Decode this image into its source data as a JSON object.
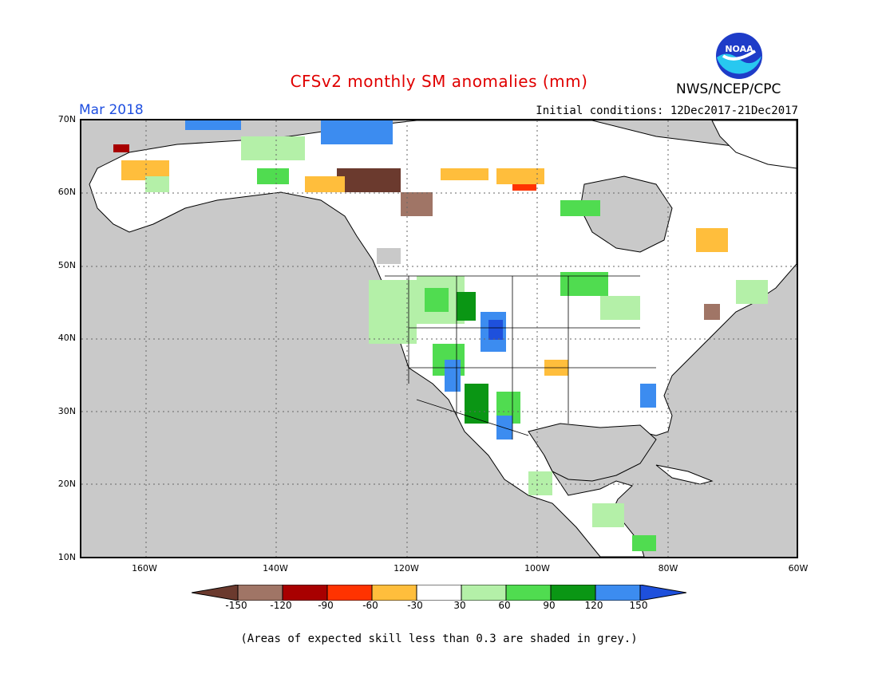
{
  "header": {
    "title": "CFSv2 monthly SM anomalies (mm)",
    "month": "Mar 2018",
    "initial_conditions": "Initial conditions: 12Dec2017-21Dec2017",
    "agency": "NWS/NCEP/CPC",
    "logo_text": "NOAA"
  },
  "map": {
    "lat_labels": [
      "70N",
      "60N",
      "50N",
      "40N",
      "30N",
      "20N",
      "10N"
    ],
    "lon_labels": [
      "160W",
      "140W",
      "120W",
      "100W",
      "80W",
      "60W"
    ],
    "extent": {
      "lon_min": -170,
      "lon_max": -60,
      "lat_min": 10,
      "lat_max": 70
    },
    "background_color": "#c9c9c9"
  },
  "legend": {
    "tick_labels": [
      "-150",
      "-120",
      "-90",
      "-60",
      "-30",
      "30",
      "60",
      "90",
      "120",
      "150"
    ],
    "colors": [
      "#6b3a2e",
      "#a07566",
      "#a80000",
      "#ff3300",
      "#ffbe3c",
      "#ffffff",
      "#b4f0a8",
      "#50dc50",
      "#0a9614",
      "#3c8cf0",
      "#1e50dc"
    ]
  },
  "footnote": "(Areas of expected skill less than 0.3 are shaded in grey.)"
}
